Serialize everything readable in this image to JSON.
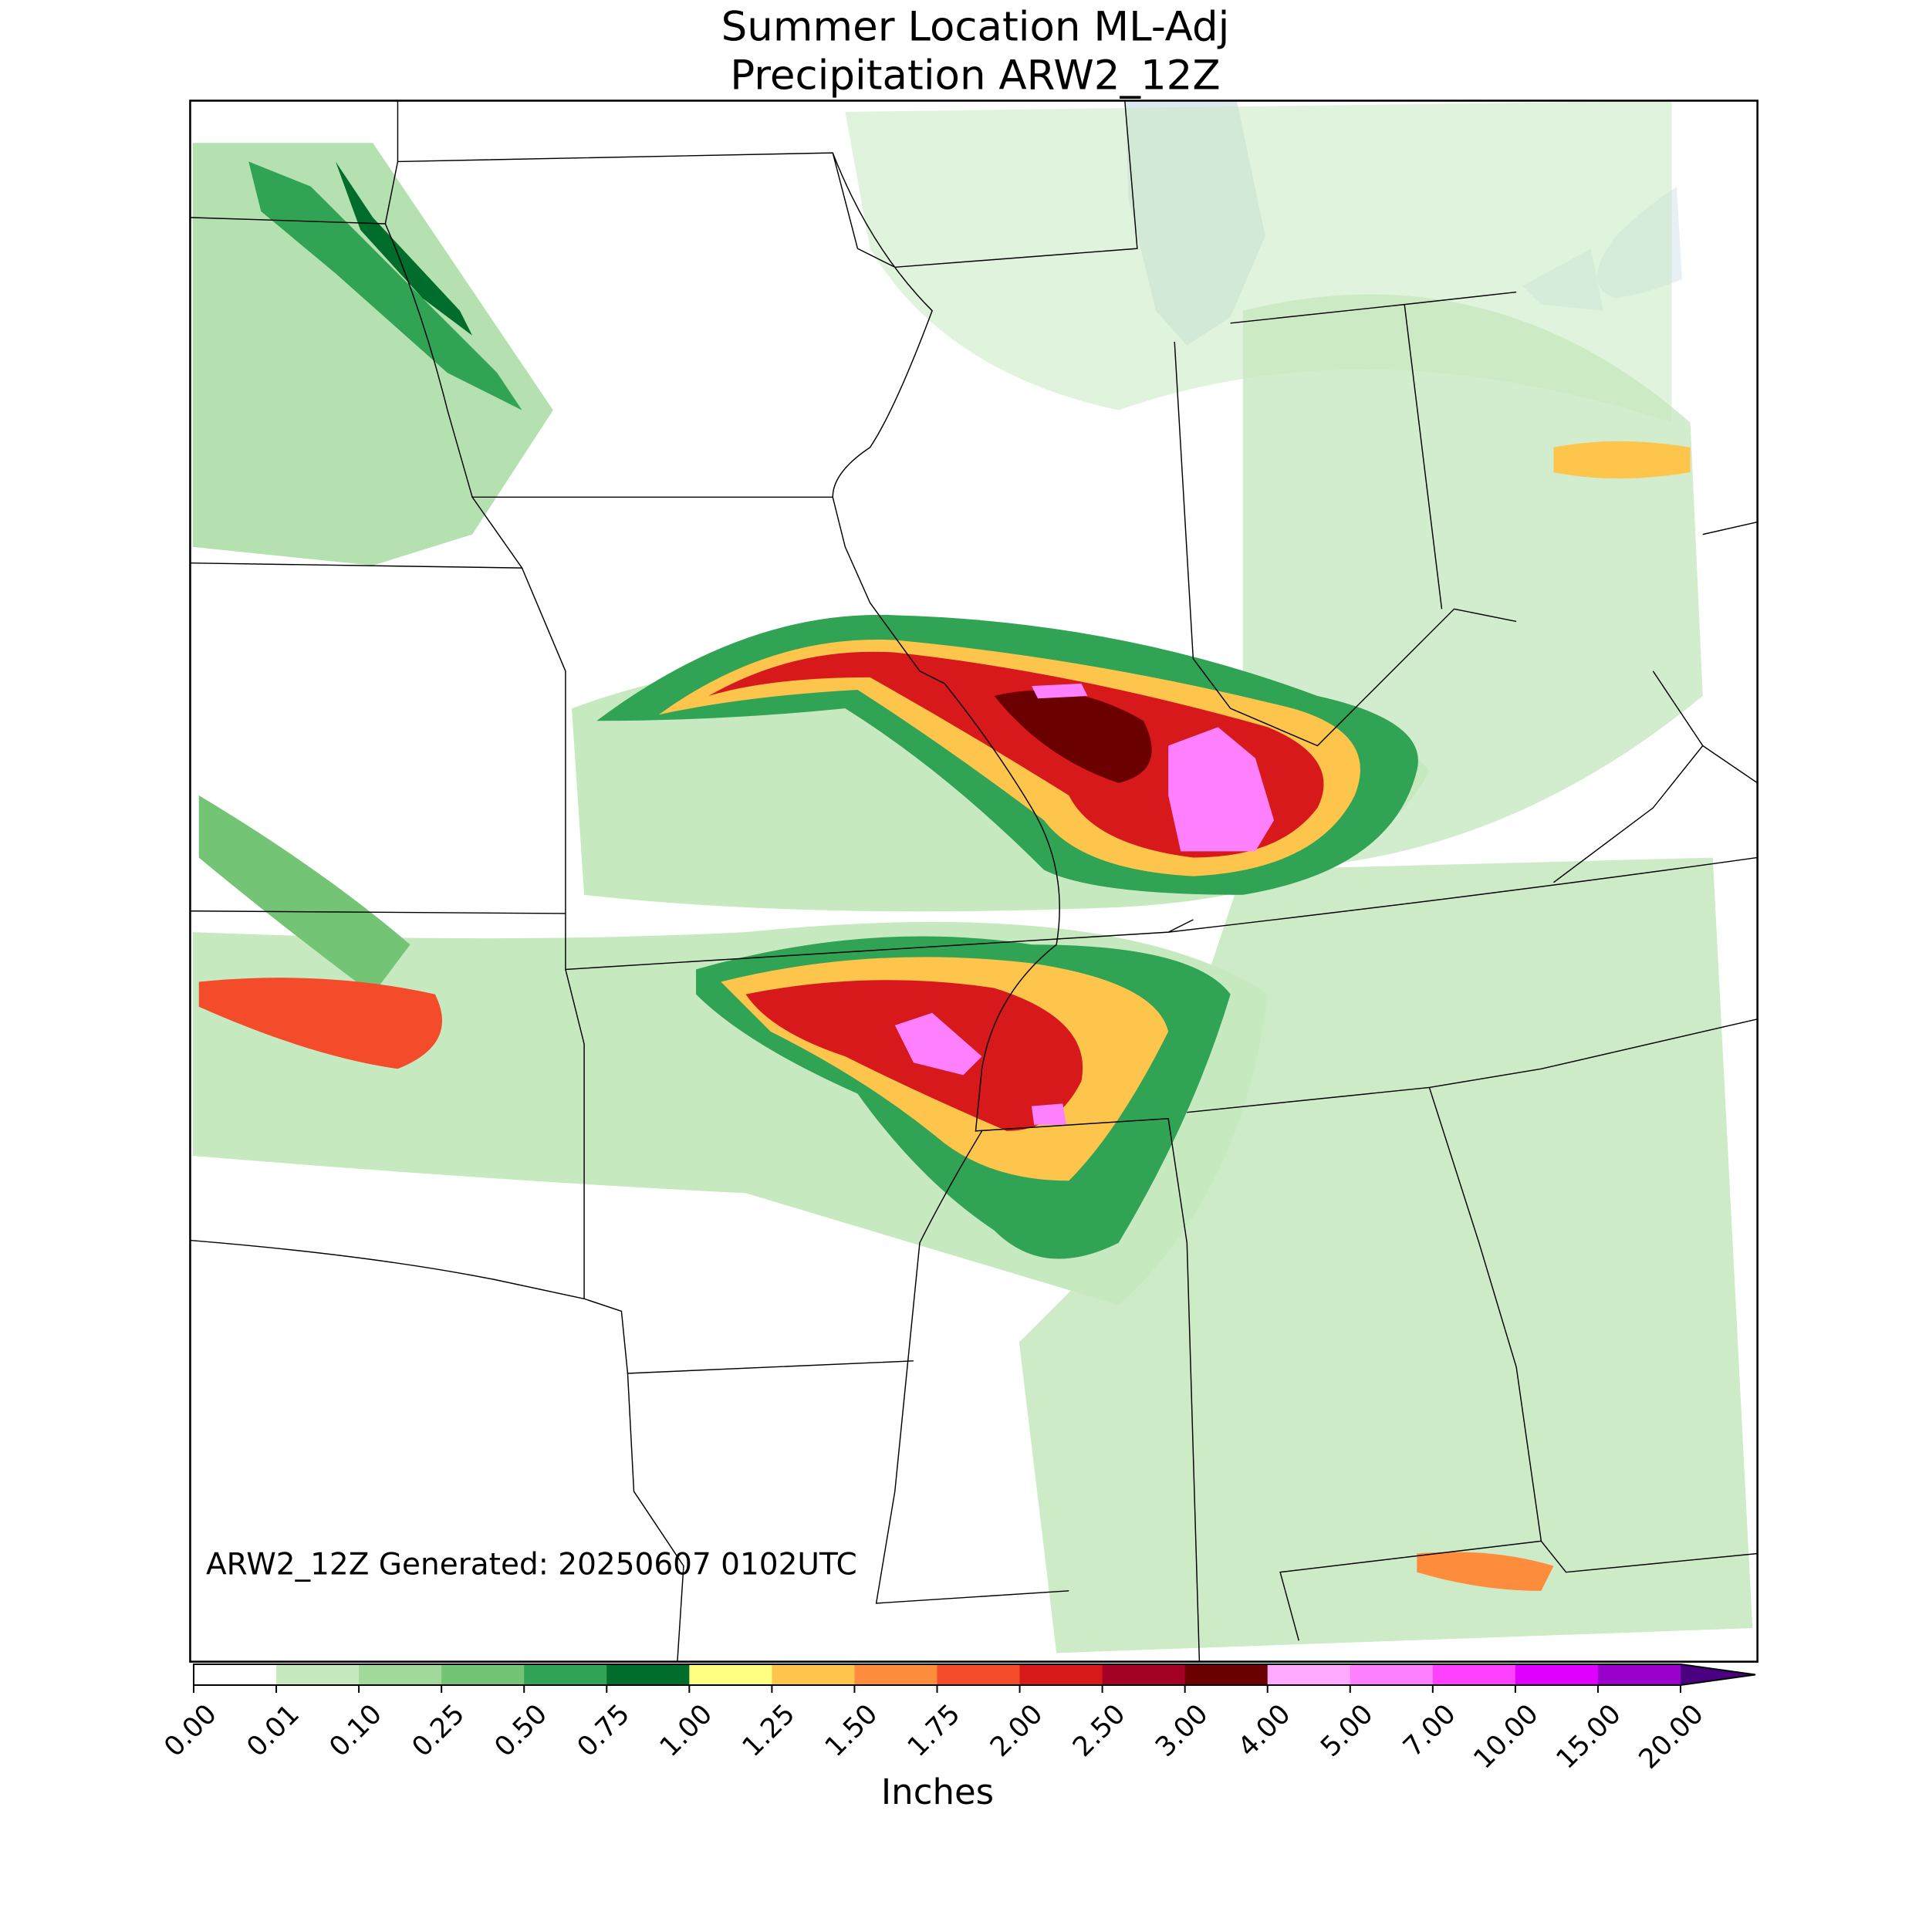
{
  "title": "Summer Location ML-Adj",
  "subtitle": "Precipitation ARW2_12Z",
  "annotation": "ARW2_12Z Generated: 20250607 0102UTC",
  "colorbar": {
    "label": "Inches",
    "ticks": [
      {
        "value": 0,
        "label": "0.00"
      },
      {
        "value": 0.01,
        "label": "0.01"
      },
      {
        "value": 0.1,
        "label": "0.10"
      },
      {
        "value": 0.25,
        "label": "0.25"
      },
      {
        "value": 0.5,
        "label": "0.50"
      },
      {
        "value": 0.75,
        "label": "0.75"
      },
      {
        "value": 1,
        "label": "1.00"
      },
      {
        "value": 1.25,
        "label": "1.25"
      },
      {
        "value": 1.5,
        "label": "1.50"
      },
      {
        "value": 1.75,
        "label": "1.75"
      },
      {
        "value": 2,
        "label": "2.00"
      },
      {
        "value": 2.5,
        "label": "2.50"
      },
      {
        "value": 3,
        "label": "3.00"
      },
      {
        "value": 4,
        "label": "4.00"
      },
      {
        "value": 5,
        "label": "5.00"
      },
      {
        "value": 7,
        "label": "7.00"
      },
      {
        "value": 10,
        "label": "10.00"
      },
      {
        "value": 15,
        "label": "15.00"
      },
      {
        "value": 20,
        "label": "20.00"
      }
    ],
    "colors": [
      "#ffffff",
      "#c7e9c0",
      "#a1d99b",
      "#74c476",
      "#31a354",
      "#006d2c",
      "#ffff80",
      "#fdc54c",
      "#fd8d3c",
      "#f44b2a",
      "#d7191c",
      "#a50026",
      "#6b0000",
      "#ffaaff",
      "#ff80ff",
      "#ff40ff",
      "#e000ff",
      "#9900cc"
    ],
    "extend_color": "#4b0082"
  }
}
